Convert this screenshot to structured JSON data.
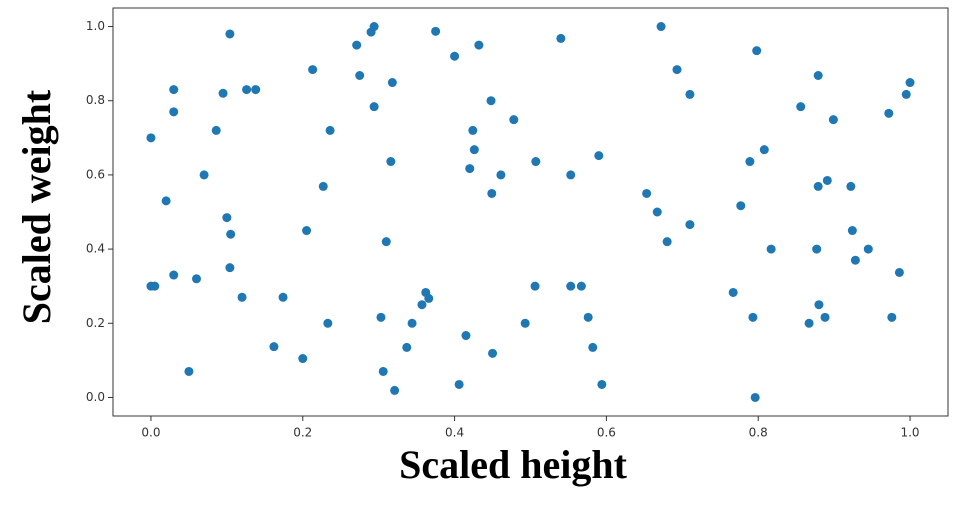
{
  "chart_data": {
    "type": "scatter",
    "x_label": "Scaled height",
    "y_label": "Scaled weight",
    "color": "#1f77b4",
    "xlim": [
      -0.05,
      1.05
    ],
    "ylim": [
      -0.05,
      1.05
    ],
    "xticks": [
      {
        "value": 0,
        "label": "0.0"
      },
      0.2,
      0.4,
      0.6,
      0.8,
      {
        "value": 1,
        "label": "1.0"
      }
    ],
    "yticks": [
      {
        "value": 0,
        "label": "0.0"
      },
      0.2,
      0.4,
      0.6,
      0.8,
      {
        "value": 1,
        "label": "1.0"
      }
    ],
    "x": [
      0.0,
      0.0,
      0.005,
      0.02,
      0.03,
      0.03,
      0.03,
      0.05,
      0.06,
      0.07,
      0.086,
      0.095,
      0.104,
      0.1,
      0.105,
      0.104,
      0.12,
      0.126,
      0.138,
      0.162,
      0.174,
      0.2,
      0.205,
      0.213,
      0.227,
      0.236,
      0.233,
      0.271,
      0.275,
      0.29,
      0.294,
      0.294,
      0.318,
      0.316,
      0.31,
      0.303,
      0.306,
      0.321,
      0.337,
      0.344,
      0.357,
      0.362,
      0.366,
      0.375,
      0.4,
      0.406,
      0.415,
      0.42,
      0.424,
      0.426,
      0.432,
      0.448,
      0.449,
      0.461,
      0.45,
      0.478,
      0.493,
      0.506,
      0.507,
      0.54,
      0.553,
      0.553,
      0.567,
      0.576,
      0.582,
      0.59,
      0.594,
      0.653,
      0.667,
      0.672,
      0.68,
      0.693,
      0.71,
      0.71,
      0.767,
      0.777,
      0.789,
      0.798,
      0.793,
      0.796,
      0.808,
      0.817,
      0.856,
      0.867,
      0.879,
      0.879,
      0.891,
      0.877,
      0.88,
      0.888,
      0.899,
      0.922,
      0.924,
      0.928,
      0.945,
      0.972,
      0.976,
      0.986,
      0.995,
      1.0
    ],
    "values": [
      0.7,
      0.3,
      0.3,
      0.53,
      0.77,
      0.83,
      0.33,
      0.07,
      0.32,
      0.6,
      0.72,
      0.82,
      0.98,
      0.485,
      0.44,
      0.35,
      0.27,
      0.83,
      0.83,
      0.137,
      0.27,
      0.105,
      0.45,
      0.884,
      0.569,
      0.72,
      0.2,
      0.95,
      0.868,
      0.985,
      1.0,
      0.784,
      0.849,
      0.636,
      0.42,
      0.216,
      0.07,
      0.019,
      0.135,
      0.2,
      0.25,
      0.283,
      0.267,
      0.987,
      0.92,
      0.035,
      0.167,
      0.617,
      0.72,
      0.668,
      0.95,
      0.8,
      0.55,
      0.6,
      0.119,
      0.749,
      0.2,
      0.3,
      0.636,
      0.968,
      0.6,
      0.3,
      0.3,
      0.216,
      0.135,
      0.652,
      0.035,
      0.55,
      0.5,
      1.0,
      0.42,
      0.884,
      0.817,
      0.466,
      0.283,
      0.517,
      0.636,
      0.935,
      0.216,
      0.0,
      0.668,
      0.4,
      0.784,
      0.2,
      0.868,
      0.569,
      0.585,
      0.4,
      0.25,
      0.216,
      0.749,
      0.569,
      0.45,
      0.37,
      0.4,
      0.766,
      0.216,
      0.337,
      0.817,
      0.849
    ]
  }
}
